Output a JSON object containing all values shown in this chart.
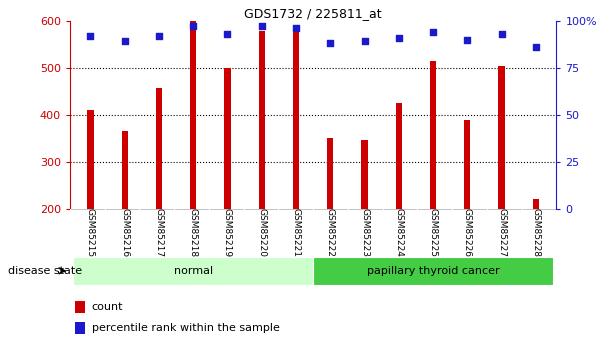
{
  "title": "GDS1732 / 225811_at",
  "samples": [
    "GSM85215",
    "GSM85216",
    "GSM85217",
    "GSM85218",
    "GSM85219",
    "GSM85220",
    "GSM85221",
    "GSM85222",
    "GSM85223",
    "GSM85224",
    "GSM85225",
    "GSM85226",
    "GSM85227",
    "GSM85228"
  ],
  "counts": [
    410,
    365,
    457,
    600,
    500,
    578,
    590,
    350,
    347,
    425,
    515,
    388,
    503,
    220
  ],
  "percentile_ranks": [
    92,
    89,
    92,
    97,
    93,
    97,
    96,
    88,
    89,
    91,
    94,
    90,
    93,
    86
  ],
  "bar_color": "#cc0000",
  "dot_color": "#1a1acc",
  "ylim_left": [
    200,
    600
  ],
  "ylim_right": [
    0,
    100
  ],
  "yticks_left": [
    200,
    300,
    400,
    500,
    600
  ],
  "yticks_right": [
    0,
    25,
    50,
    75,
    100
  ],
  "ytick_labels_right": [
    "0",
    "25",
    "50",
    "75",
    "100%"
  ],
  "groups": [
    {
      "label": "normal",
      "start": 0,
      "end": 6,
      "color": "#ccffcc"
    },
    {
      "label": "papillary thyroid cancer",
      "start": 7,
      "end": 13,
      "color": "#44cc44"
    }
  ],
  "disease_state_label": "disease state",
  "legend_items": [
    {
      "color": "#cc0000",
      "label": "count"
    },
    {
      "color": "#1a1acc",
      "label": "percentile rank within the sample"
    }
  ],
  "background_color": "#ffffff",
  "tick_area_color": "#c8c8c8",
  "grid_color": "#000000",
  "title_color": "#000000",
  "left_axis_color": "#cc0000",
  "right_axis_color": "#1a1acc"
}
